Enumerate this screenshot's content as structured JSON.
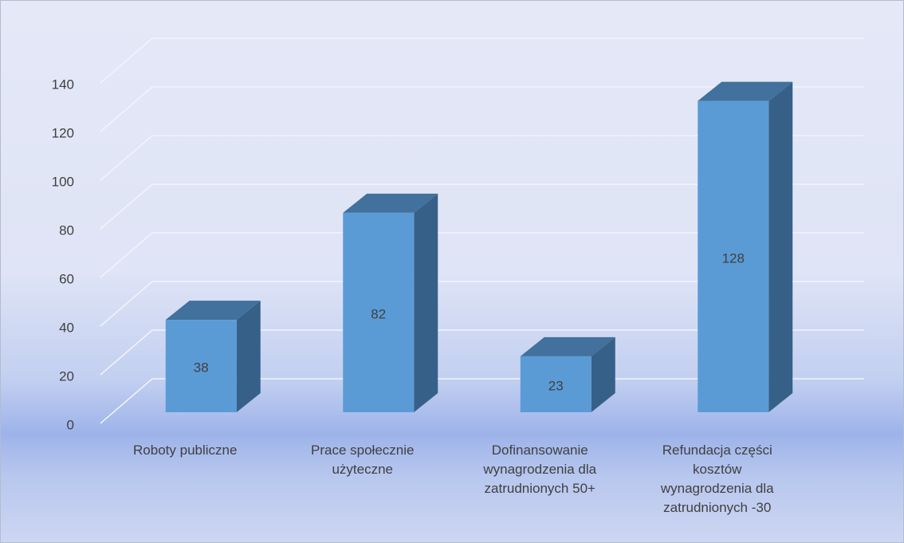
{
  "chart_data": {
    "type": "bar3d",
    "categories": [
      "Roboty publiczne",
      "Prace społecznie użyteczne",
      "Dofinansowanie wynagrodzenia dla zatrudnionych 50+",
      "Refundacja części kosztów wynagrodzenia dla zatrudnionych -30"
    ],
    "values": [
      38,
      82,
      23,
      128
    ],
    "color": "#5b9bd5",
    "ylim": [
      0,
      140
    ],
    "yticks": [
      0,
      20,
      40,
      60,
      80,
      100,
      120,
      140
    ],
    "grid": true
  }
}
